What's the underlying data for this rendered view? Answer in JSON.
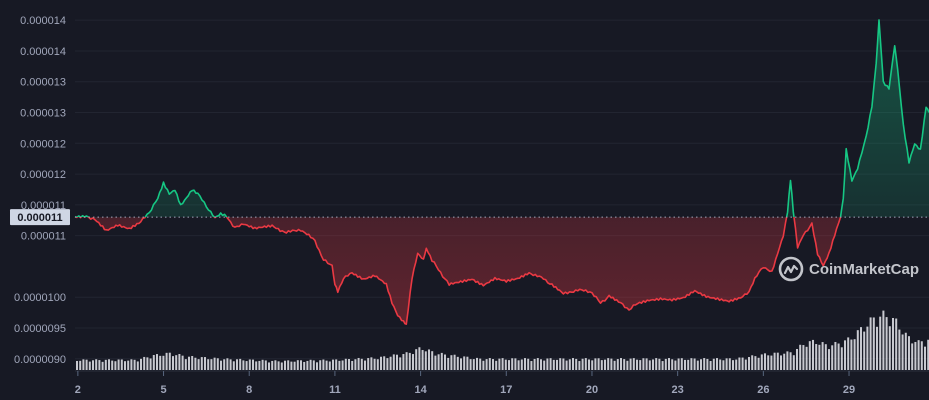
{
  "chart_data": {
    "type": "line",
    "y_tick_labels": [
      "0.000014",
      "0.000014",
      "0.000013",
      "0.000013",
      "0.000012",
      "0.000012",
      "0.000011",
      "0.000011",
      "0.0000100",
      "0.0000095",
      "0.0000090"
    ],
    "y_tick_values": [
      1.45e-05,
      1.4e-05,
      1.35e-05,
      1.3e-05,
      1.25e-05,
      1.2e-05,
      1.15e-05,
      1.1e-05,
      1e-05,
      9.5e-06,
      9e-06
    ],
    "x_tick_labels": [
      "2",
      "5",
      "8",
      "11",
      "14",
      "17",
      "20",
      "23",
      "26",
      "29"
    ],
    "x_tick_values": [
      2,
      5,
      8,
      11,
      14,
      17,
      20,
      23,
      26,
      29
    ],
    "xlim": [
      1.9,
      31.8
    ],
    "ylim": [
      8.85e-06,
      1.46e-05
    ],
    "grid": true,
    "baseline": {
      "value": 1.13e-05,
      "label": "0.000011"
    },
    "colors": {
      "up": "#16c784",
      "down": "#ea3943",
      "background": "#171924",
      "grid": "#222531",
      "volume": "#e7e9ef"
    },
    "watermark": "CoinMarketCap",
    "price_points": [
      [
        1.9,
        1.13e-05
      ],
      [
        2.3,
        1.132e-05
      ],
      [
        2.6,
        1.125e-05
      ],
      [
        3.0,
        1.108e-05
      ],
      [
        3.4,
        1.118e-05
      ],
      [
        3.8,
        1.112e-05
      ],
      [
        4.2,
        1.122e-05
      ],
      [
        4.5,
        1.138e-05
      ],
      [
        4.8,
        1.16e-05
      ],
      [
        5.0,
        1.185e-05
      ],
      [
        5.2,
        1.168e-05
      ],
      [
        5.4,
        1.175e-05
      ],
      [
        5.6,
        1.15e-05
      ],
      [
        5.8,
        1.162e-05
      ],
      [
        6.0,
        1.175e-05
      ],
      [
        6.2,
        1.168e-05
      ],
      [
        6.5,
        1.148e-05
      ],
      [
        6.8,
        1.128e-05
      ],
      [
        7.0,
        1.135e-05
      ],
      [
        7.2,
        1.132e-05
      ],
      [
        7.5,
        1.112e-05
      ],
      [
        7.8,
        1.12e-05
      ],
      [
        8.2,
        1.112e-05
      ],
      [
        8.8,
        1.115e-05
      ],
      [
        9.3,
        1.105e-05
      ],
      [
        9.8,
        1.11e-05
      ],
      [
        10.3,
        1.092e-05
      ],
      [
        10.6,
        1.06e-05
      ],
      [
        10.9,
        1.052e-05
      ],
      [
        11.0,
        1.02e-05
      ],
      [
        11.1,
        1.01e-05
      ],
      [
        11.3,
        1.03e-05
      ],
      [
        11.6,
        1.04e-05
      ],
      [
        12.0,
        1.03e-05
      ],
      [
        12.4,
        1.035e-05
      ],
      [
        12.8,
        1.02e-05
      ],
      [
        13.0,
        9.9e-06
      ],
      [
        13.2,
        9.7e-06
      ],
      [
        13.4,
        9.6e-06
      ],
      [
        13.5,
        9.55e-06
      ],
      [
        13.7,
        1.03e-05
      ],
      [
        13.9,
        1.07e-05
      ],
      [
        14.1,
        1.06e-05
      ],
      [
        14.2,
        1.08e-05
      ],
      [
        14.4,
        1.06e-05
      ],
      [
        14.7,
        1.04e-05
      ],
      [
        15.0,
        1.02e-05
      ],
      [
        15.4,
        1.025e-05
      ],
      [
        15.8,
        1.03e-05
      ],
      [
        16.2,
        1.02e-05
      ],
      [
        16.6,
        1.03e-05
      ],
      [
        17.0,
        1.025e-05
      ],
      [
        17.4,
        1.03e-05
      ],
      [
        17.8,
        1.04e-05
      ],
      [
        18.3,
        1.03e-05
      ],
      [
        18.6,
        1.02e-05
      ],
      [
        19.0,
        1.005e-05
      ],
      [
        19.5,
        1.012e-05
      ],
      [
        20.0,
        1.008e-05
      ],
      [
        20.3,
        9.9e-06
      ],
      [
        20.6,
        1.002e-05
      ],
      [
        21.0,
        9.9e-06
      ],
      [
        21.3,
        9.8e-06
      ],
      [
        21.6,
        9.9e-06
      ],
      [
        22.0,
        9.96e-06
      ],
      [
        22.4,
        9.98e-06
      ],
      [
        22.8,
        9.95e-06
      ],
      [
        23.2,
        9.98e-06
      ],
      [
        23.6,
        1.01e-05
      ],
      [
        24.0,
        1.002e-05
      ],
      [
        24.4,
        9.98e-06
      ],
      [
        24.8,
        9.93e-06
      ],
      [
        25.2,
        9.98e-06
      ],
      [
        25.5,
        1.01e-05
      ],
      [
        25.7,
        1.03e-05
      ],
      [
        26.0,
        1.05e-05
      ],
      [
        26.3,
        1.04e-05
      ],
      [
        26.5,
        1.07e-05
      ],
      [
        26.7,
        1.1e-05
      ],
      [
        26.85,
        1.14e-05
      ],
      [
        26.95,
        1.19e-05
      ],
      [
        27.05,
        1.14e-05
      ],
      [
        27.2,
        1.08e-05
      ],
      [
        27.4,
        1.1e-05
      ],
      [
        27.7,
        1.12e-05
      ],
      [
        27.9,
        1.07e-05
      ],
      [
        28.1,
        1.05e-05
      ],
      [
        28.3,
        1.07e-05
      ],
      [
        28.5,
        1.1e-05
      ],
      [
        28.7,
        1.13e-05
      ],
      [
        28.8,
        1.16e-05
      ],
      [
        28.9,
        1.24e-05
      ],
      [
        29.1,
        1.19e-05
      ],
      [
        29.3,
        1.21e-05
      ],
      [
        29.6,
        1.26e-05
      ],
      [
        29.8,
        1.31e-05
      ],
      [
        29.95,
        1.38e-05
      ],
      [
        30.05,
        1.45e-05
      ],
      [
        30.2,
        1.35e-05
      ],
      [
        30.4,
        1.34e-05
      ],
      [
        30.6,
        1.41e-05
      ],
      [
        30.7,
        1.37e-05
      ],
      [
        30.9,
        1.28e-05
      ],
      [
        31.1,
        1.22e-05
      ],
      [
        31.3,
        1.25e-05
      ],
      [
        31.5,
        1.24e-05
      ],
      [
        31.7,
        1.31e-05
      ],
      [
        31.8,
        1.3e-05
      ]
    ],
    "volume_points": [
      [
        1.9,
        0.18
      ],
      [
        4.0,
        0.18
      ],
      [
        4.6,
        0.26
      ],
      [
        5.2,
        0.3
      ],
      [
        5.8,
        0.24
      ],
      [
        7.0,
        0.2
      ],
      [
        9.0,
        0.16
      ],
      [
        11.0,
        0.18
      ],
      [
        12.5,
        0.22
      ],
      [
        13.5,
        0.3
      ],
      [
        14.0,
        0.4
      ],
      [
        14.5,
        0.3
      ],
      [
        16.0,
        0.2
      ],
      [
        20.0,
        0.2
      ],
      [
        23.0,
        0.2
      ],
      [
        25.0,
        0.2
      ],
      [
        26.0,
        0.28
      ],
      [
        27.0,
        0.32
      ],
      [
        27.4,
        0.48
      ],
      [
        27.8,
        0.52
      ],
      [
        28.2,
        0.44
      ],
      [
        28.6,
        0.48
      ],
      [
        29.0,
        0.56
      ],
      [
        29.4,
        0.74
      ],
      [
        29.8,
        0.92
      ],
      [
        30.2,
        1.0
      ],
      [
        30.6,
        0.88
      ],
      [
        31.0,
        0.6
      ],
      [
        31.4,
        0.5
      ],
      [
        31.8,
        0.55
      ]
    ]
  }
}
